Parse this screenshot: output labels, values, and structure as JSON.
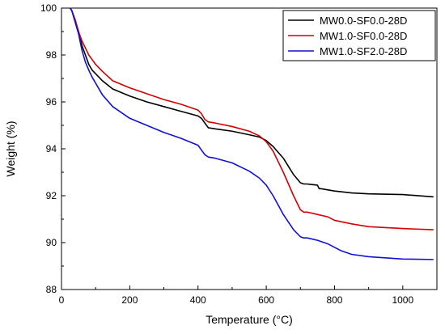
{
  "chart_data": {
    "type": "line",
    "title": "",
    "xlabel": "Temperature (°C)",
    "ylabel": "Weight (%)",
    "xlim": [
      0,
      1100
    ],
    "ylim": [
      88,
      100
    ],
    "xticks": [
      "0",
      "200",
      "400",
      "600",
      "800",
      "1000"
    ],
    "yticks": [
      "88",
      "90",
      "92",
      "94",
      "96",
      "98",
      "100"
    ],
    "grid": false,
    "legend_position": "top-right",
    "series": [
      {
        "name": "MW0.0-SF0.0-28D",
        "color": "#000000",
        "x": [
          25,
          30,
          40,
          50,
          60,
          70,
          80,
          90,
          100,
          120,
          150,
          200,
          250,
          300,
          350,
          400,
          410,
          420,
          430,
          450,
          500,
          550,
          580,
          600,
          620,
          650,
          680,
          700,
          710,
          720,
          750,
          755,
          760,
          800,
          850,
          900,
          1000,
          1090
        ],
        "y": [
          100,
          99.9,
          99.5,
          99.0,
          98.4,
          98.0,
          97.6,
          97.35,
          97.2,
          96.9,
          96.55,
          96.25,
          96.0,
          95.8,
          95.6,
          95.4,
          95.3,
          95.1,
          94.9,
          94.85,
          94.75,
          94.6,
          94.5,
          94.35,
          94.1,
          93.6,
          92.9,
          92.55,
          92.5,
          92.5,
          92.45,
          92.3,
          92.3,
          92.2,
          92.12,
          92.08,
          92.05,
          91.95
        ]
      },
      {
        "name": "MW1.0-SF0.0-28D",
        "color": "#d40000",
        "x": [
          25,
          30,
          40,
          50,
          60,
          70,
          80,
          90,
          100,
          120,
          150,
          200,
          250,
          300,
          350,
          400,
          410,
          420,
          430,
          450,
          500,
          550,
          580,
          600,
          620,
          650,
          680,
          700,
          710,
          720,
          750,
          780,
          800,
          850,
          900,
          1000,
          1090
        ],
        "y": [
          100,
          99.9,
          99.5,
          99.0,
          98.6,
          98.3,
          98.0,
          97.8,
          97.6,
          97.3,
          96.9,
          96.6,
          96.35,
          96.1,
          95.9,
          95.65,
          95.5,
          95.25,
          95.15,
          95.1,
          94.95,
          94.75,
          94.55,
          94.3,
          93.9,
          93.0,
          92.0,
          91.4,
          91.3,
          91.3,
          91.2,
          91.1,
          90.95,
          90.8,
          90.68,
          90.6,
          90.55
        ]
      },
      {
        "name": "MW1.0-SF2.0-28D",
        "color": "#1010d8",
        "x": [
          25,
          30,
          40,
          50,
          60,
          70,
          80,
          90,
          100,
          120,
          150,
          200,
          250,
          300,
          350,
          400,
          410,
          420,
          430,
          450,
          500,
          550,
          580,
          600,
          620,
          650,
          680,
          700,
          710,
          720,
          750,
          780,
          800,
          820,
          850,
          900,
          1000,
          1090
        ],
        "y": [
          100,
          99.9,
          99.4,
          98.9,
          98.2,
          97.7,
          97.35,
          97.05,
          96.8,
          96.3,
          95.8,
          95.3,
          95.0,
          94.7,
          94.45,
          94.15,
          93.95,
          93.75,
          93.65,
          93.6,
          93.4,
          93.05,
          92.75,
          92.45,
          92.0,
          91.2,
          90.55,
          90.25,
          90.2,
          90.2,
          90.1,
          89.95,
          89.8,
          89.65,
          89.5,
          89.4,
          89.3,
          89.28
        ]
      }
    ]
  }
}
